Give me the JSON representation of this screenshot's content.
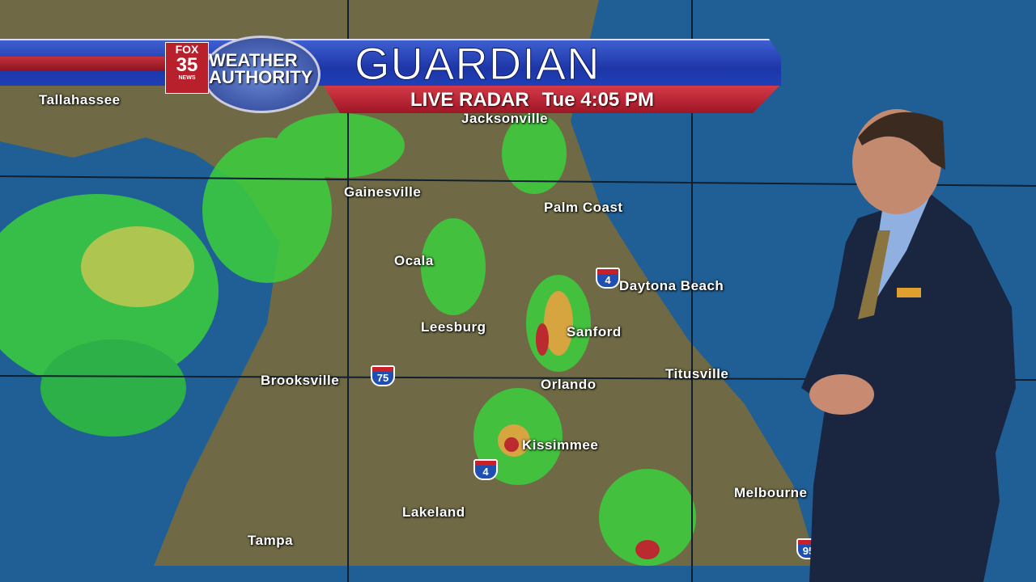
{
  "banner": {
    "title": "GUARDIAN",
    "subtitle": "LIVE RADAR",
    "time": "Tue 4:05 PM",
    "logo": {
      "network": "FOX",
      "channel": "35",
      "news": "NEWS",
      "brand_line1": "WEATHER",
      "brand_line2": "AUTHORITY"
    },
    "colors": {
      "blue": "#1d36a8",
      "red": "#b01e2e"
    }
  },
  "map": {
    "colors": {
      "ocean": "#1f5f95",
      "land": "#6f6a45",
      "radar_light": "#3ccf3c",
      "radar_mid": "#e8d84a",
      "radar_heavy": "#c8202a"
    },
    "cities": [
      "Tallahassee",
      "Jacksonville",
      "Gainesville",
      "Palm Coast",
      "Ocala",
      "Daytona Beach",
      "Leesburg",
      "Sanford",
      "Brooksville",
      "Orlando",
      "Titusville",
      "Kissimmee",
      "Melbourne",
      "Lakeland",
      "Tampa"
    ],
    "interstates": [
      "75",
      "4",
      "4",
      "95"
    ]
  }
}
